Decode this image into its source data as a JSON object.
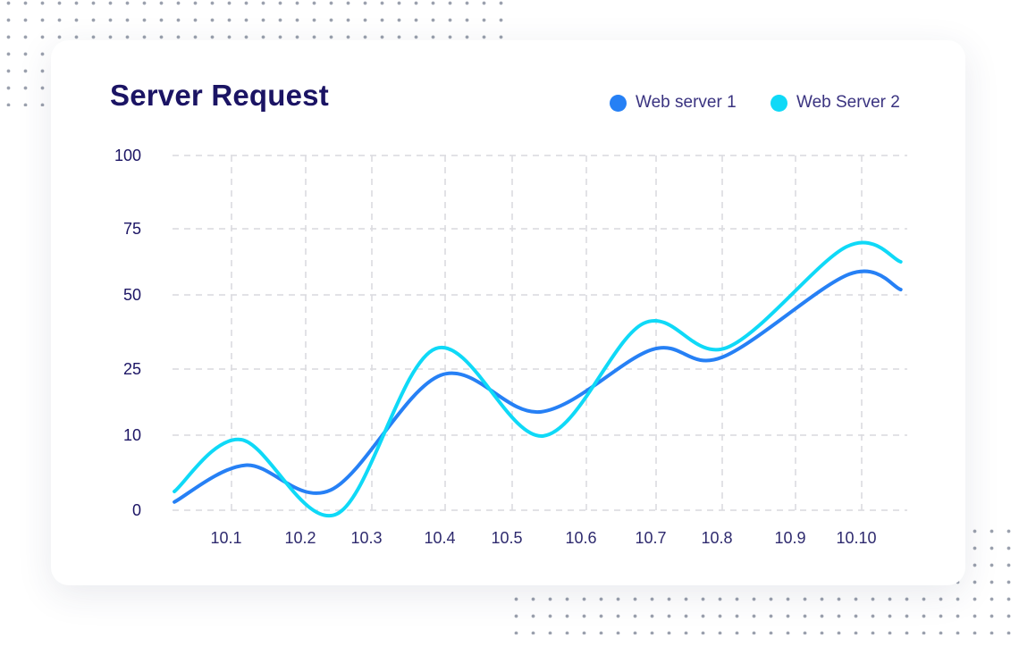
{
  "chart_data": {
    "type": "line",
    "title": "Server Request",
    "categories": [
      "10.1",
      "10.2",
      "10.3",
      "10.4",
      "10.5",
      "10.6",
      "10.7",
      "10.8",
      "10.9",
      "10.10"
    ],
    "y_ticks": [
      0,
      10,
      25,
      50,
      75,
      100
    ],
    "ylim": [
      0,
      100
    ],
    "grid": true,
    "grid_style": "dashed",
    "legend_position": "top-right",
    "smooth": true,
    "series": [
      {
        "name": "Web server 1",
        "color": "#2680f5",
        "points": [
          [
            0.23,
            1.1
          ],
          [
            1.19,
            6
          ],
          [
            2.38,
            2.7
          ],
          [
            3.94,
            23.6
          ],
          [
            5.39,
            15.3
          ],
          [
            6.95,
            31.6
          ],
          [
            7.99,
            28.9
          ],
          [
            9.81,
            57.8
          ],
          [
            10.59,
            52
          ]
        ]
      },
      {
        "name": "Web Server 2",
        "color": "#0fd9f7",
        "points": [
          [
            0.23,
            2.5
          ],
          [
            1.13,
            9.4
          ],
          [
            2.47,
            -0.5
          ],
          [
            3.87,
            31.9
          ],
          [
            5.42,
            9.9
          ],
          [
            6.82,
            40.4
          ],
          [
            8.06,
            32.2
          ],
          [
            9.77,
            68.2
          ],
          [
            10.59,
            62.5
          ]
        ]
      }
    ]
  }
}
